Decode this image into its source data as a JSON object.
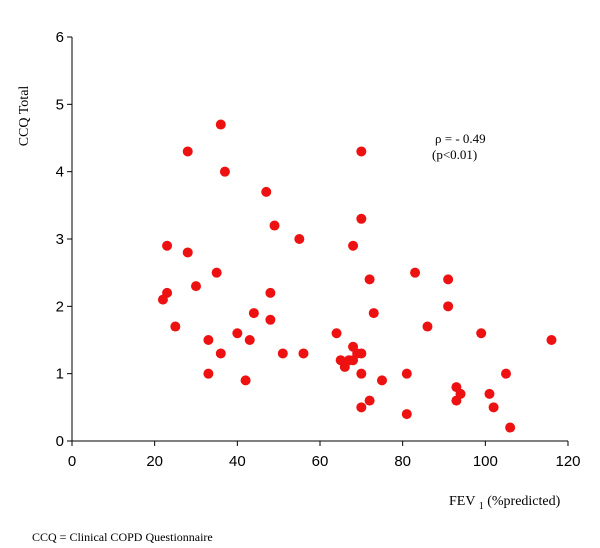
{
  "chart_data": {
    "type": "scatter",
    "xlabel": "FEV",
    "xlabel_sub": "1",
    "xlabel_rest": " (%predicted)",
    "ylabel": "CCQ Total",
    "xlim": [
      0,
      120
    ],
    "ylim": [
      0,
      6
    ],
    "xticks": [
      0,
      20,
      40,
      60,
      80,
      100,
      120
    ],
    "yticks": [
      0,
      1,
      2,
      3,
      4,
      5,
      6
    ],
    "grid": false,
    "marker_color": "#ee1111",
    "annotation_line1": "ρ = - 0.49",
    "annotation_line2": "(p<0.01)",
    "points": [
      {
        "x": 22,
        "y": 2.1
      },
      {
        "x": 23,
        "y": 2.9
      },
      {
        "x": 23,
        "y": 2.2
      },
      {
        "x": 25,
        "y": 1.7
      },
      {
        "x": 28,
        "y": 4.3
      },
      {
        "x": 28,
        "y": 2.8
      },
      {
        "x": 30,
        "y": 2.3
      },
      {
        "x": 33,
        "y": 1.5
      },
      {
        "x": 33,
        "y": 1.0
      },
      {
        "x": 35,
        "y": 2.5
      },
      {
        "x": 36,
        "y": 4.7
      },
      {
        "x": 36,
        "y": 1.3
      },
      {
        "x": 37,
        "y": 4.0
      },
      {
        "x": 40,
        "y": 1.6
      },
      {
        "x": 42,
        "y": 0.9
      },
      {
        "x": 43,
        "y": 1.5
      },
      {
        "x": 44,
        "y": 1.9
      },
      {
        "x": 47,
        "y": 3.7
      },
      {
        "x": 48,
        "y": 2.2
      },
      {
        "x": 48,
        "y": 1.8
      },
      {
        "x": 49,
        "y": 3.2
      },
      {
        "x": 51,
        "y": 1.3
      },
      {
        "x": 55,
        "y": 3.0
      },
      {
        "x": 56,
        "y": 1.3
      },
      {
        "x": 64,
        "y": 1.6
      },
      {
        "x": 65,
        "y": 1.2
      },
      {
        "x": 66,
        "y": 1.1
      },
      {
        "x": 67,
        "y": 1.2
      },
      {
        "x": 68,
        "y": 1.4
      },
      {
        "x": 68,
        "y": 2.9
      },
      {
        "x": 68,
        "y": 1.2
      },
      {
        "x": 69,
        "y": 1.3
      },
      {
        "x": 70,
        "y": 4.3
      },
      {
        "x": 70,
        "y": 3.3
      },
      {
        "x": 70,
        "y": 1.3
      },
      {
        "x": 70,
        "y": 1.0
      },
      {
        "x": 70,
        "y": 0.5
      },
      {
        "x": 72,
        "y": 2.4
      },
      {
        "x": 72,
        "y": 0.6
      },
      {
        "x": 73,
        "y": 1.9
      },
      {
        "x": 75,
        "y": 0.9
      },
      {
        "x": 81,
        "y": 1.0
      },
      {
        "x": 81,
        "y": 0.4
      },
      {
        "x": 83,
        "y": 2.5
      },
      {
        "x": 86,
        "y": 1.7
      },
      {
        "x": 91,
        "y": 2.4
      },
      {
        "x": 91,
        "y": 2.0
      },
      {
        "x": 93,
        "y": 0.8
      },
      {
        "x": 93,
        "y": 0.6
      },
      {
        "x": 94,
        "y": 0.7
      },
      {
        "x": 99,
        "y": 1.6
      },
      {
        "x": 101,
        "y": 0.7
      },
      {
        "x": 102,
        "y": 0.5
      },
      {
        "x": 105,
        "y": 1.0
      },
      {
        "x": 106,
        "y": 0.2
      },
      {
        "x": 116,
        "y": 1.5
      }
    ]
  },
  "footnote": "CCQ = Clinical COPD Questionnaire"
}
